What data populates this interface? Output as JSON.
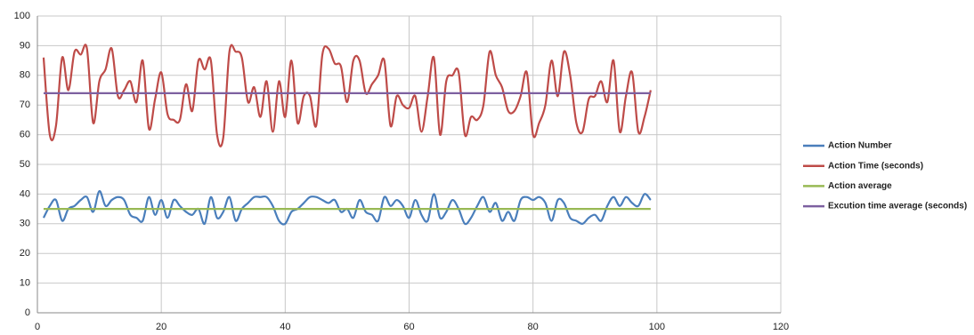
{
  "chart_data": {
    "type": "line",
    "x": [
      1,
      2,
      3,
      4,
      5,
      6,
      7,
      8,
      9,
      10,
      11,
      12,
      13,
      14,
      15,
      16,
      17,
      18,
      19,
      20,
      21,
      22,
      23,
      24,
      25,
      26,
      27,
      28,
      29,
      30,
      31,
      32,
      33,
      34,
      35,
      36,
      37,
      38,
      39,
      40,
      41,
      42,
      43,
      44,
      45,
      46,
      47,
      48,
      49,
      50,
      51,
      52,
      53,
      54,
      55,
      56,
      57,
      58,
      59,
      60,
      61,
      62,
      63,
      64,
      65,
      66,
      67,
      68,
      69,
      70,
      71,
      72,
      73,
      74,
      75,
      76,
      77,
      78,
      79,
      80,
      81,
      82,
      83,
      84,
      85,
      86,
      87,
      88,
      89,
      90,
      91,
      92,
      93,
      94,
      95,
      96,
      97,
      98,
      99
    ],
    "series": [
      {
        "name": "Action Number",
        "color": "#4a7ebb",
        "values": [
          32,
          36,
          38,
          31,
          35,
          36,
          38,
          39,
          34,
          41,
          36,
          38,
          39,
          38,
          33,
          32,
          31,
          39,
          33,
          38,
          32,
          38,
          36,
          34,
          33,
          35,
          30,
          39,
          32,
          34,
          39,
          31,
          35,
          37,
          39,
          39,
          39,
          36,
          31,
          30,
          34,
          35,
          37,
          39,
          39,
          38,
          37,
          38,
          34,
          35,
          32,
          38,
          34,
          33,
          31,
          39,
          36,
          38,
          36,
          32,
          38,
          33,
          31,
          40,
          32,
          34,
          38,
          35,
          30,
          32,
          36,
          39,
          34,
          37,
          31,
          34,
          31,
          38,
          39,
          38,
          39,
          37,
          31,
          38,
          37,
          32,
          31,
          30,
          32,
          33,
          31,
          36,
          39,
          36,
          39,
          37,
          36,
          40,
          38
        ]
      },
      {
        "name": "Action Time (seconds)",
        "color": "#be4b48",
        "values": [
          86,
          60,
          63,
          86,
          75,
          88,
          87,
          89,
          64,
          78,
          82,
          89,
          73,
          75,
          78,
          71,
          85,
          62,
          72,
          81,
          67,
          65,
          65,
          77,
          68,
          85,
          82,
          85,
          60,
          59,
          88,
          88,
          86,
          71,
          76,
          66,
          78,
          61,
          78,
          66,
          85,
          64,
          73,
          73,
          63,
          87,
          89,
          84,
          83,
          71,
          85,
          85,
          74,
          77,
          80,
          85,
          63,
          73,
          70,
          69,
          73,
          61,
          73,
          86,
          60,
          78,
          80,
          81,
          60,
          66,
          65,
          70,
          88,
          80,
          76,
          68,
          68,
          73,
          81,
          60,
          64,
          70,
          85,
          73,
          88,
          80,
          64,
          61,
          72,
          73,
          78,
          71,
          85,
          61,
          73,
          81,
          61,
          66,
          75
        ]
      },
      {
        "name": "Action average",
        "color": "#98b954",
        "values": [
          35,
          35,
          35,
          35,
          35,
          35,
          35,
          35,
          35,
          35,
          35,
          35,
          35,
          35,
          35,
          35,
          35,
          35,
          35,
          35,
          35,
          35,
          35,
          35,
          35,
          35,
          35,
          35,
          35,
          35,
          35,
          35,
          35,
          35,
          35,
          35,
          35,
          35,
          35,
          35,
          35,
          35,
          35,
          35,
          35,
          35,
          35,
          35,
          35,
          35,
          35,
          35,
          35,
          35,
          35,
          35,
          35,
          35,
          35,
          35,
          35,
          35,
          35,
          35,
          35,
          35,
          35,
          35,
          35,
          35,
          35,
          35,
          35,
          35,
          35,
          35,
          35,
          35,
          35,
          35,
          35,
          35,
          35,
          35,
          35,
          35,
          35,
          35,
          35,
          35,
          35,
          35,
          35,
          35,
          35,
          35,
          35,
          35,
          35
        ]
      },
      {
        "name": "Excution time average (seconds)",
        "color": "#7d60a0",
        "values": [
          74,
          74,
          74,
          74,
          74,
          74,
          74,
          74,
          74,
          74,
          74,
          74,
          74,
          74,
          74,
          74,
          74,
          74,
          74,
          74,
          74,
          74,
          74,
          74,
          74,
          74,
          74,
          74,
          74,
          74,
          74,
          74,
          74,
          74,
          74,
          74,
          74,
          74,
          74,
          74,
          74,
          74,
          74,
          74,
          74,
          74,
          74,
          74,
          74,
          74,
          74,
          74,
          74,
          74,
          74,
          74,
          74,
          74,
          74,
          74,
          74,
          74,
          74,
          74,
          74,
          74,
          74,
          74,
          74,
          74,
          74,
          74,
          74,
          74,
          74,
          74,
          74,
          74,
          74,
          74,
          74,
          74,
          74,
          74,
          74,
          74,
          74,
          74,
          74,
          74,
          74,
          74,
          74,
          74,
          74,
          74,
          74,
          74,
          74
        ]
      }
    ],
    "xlim": [
      0,
      120
    ],
    "xticks": [
      0,
      20,
      40,
      60,
      80,
      100,
      120
    ],
    "ylim": [
      0,
      100
    ],
    "yticks": [
      0,
      10,
      20,
      30,
      40,
      50,
      60,
      70,
      80,
      90,
      100
    ],
    "grid": true,
    "legend": "right"
  }
}
